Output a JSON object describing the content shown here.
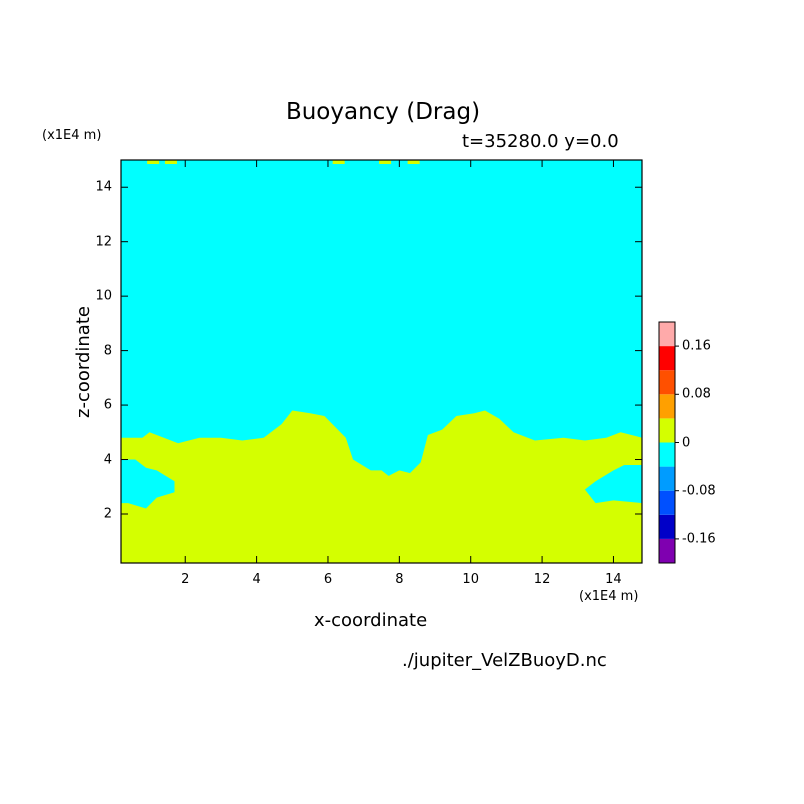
{
  "chart_data": {
    "type": "heatmap",
    "title": "Buoyancy (Drag)",
    "subtitle": "t=35280.0 y=0.0",
    "xlabel": "x-coordinate",
    "ylabel": "z-coordinate",
    "x_unit": "(x1E4 m)",
    "y_unit": "(x1E4 m)",
    "xlim": [
      0.2,
      14.8
    ],
    "ylim": [
      0.2,
      15.0
    ],
    "xticks": [
      2,
      4,
      6,
      8,
      10,
      12,
      14
    ],
    "yticks": [
      2,
      4,
      6,
      8,
      10,
      12,
      14
    ],
    "colorbar": {
      "levels": [
        -0.2,
        -0.16,
        -0.12,
        -0.08,
        -0.04,
        0,
        0.04,
        0.08,
        0.12,
        0.16,
        0.2
      ],
      "colors": [
        "#7f00b0",
        "#0000c8",
        "#0050ff",
        "#009cff",
        "#00ffff",
        "#d4ff00",
        "#ffa000",
        "#ff5000",
        "#ff0000",
        "#ffaaaa"
      ],
      "tick_labels": [
        "-0.16",
        "-0.08",
        "0",
        "0.08",
        "0.16"
      ],
      "tick_values": [
        -0.16,
        -0.08,
        0,
        0.08,
        0.16
      ]
    },
    "background_color": "#00ffff",
    "positive_color": "#d4ff00",
    "positive_region_boundary": [
      [
        0.2,
        4.8
      ],
      [
        0.8,
        4.8
      ],
      [
        1.0,
        5.0
      ],
      [
        1.4,
        4.8
      ],
      [
        1.8,
        4.6
      ],
      [
        2.4,
        4.8
      ],
      [
        3.0,
        4.8
      ],
      [
        3.6,
        4.7
      ],
      [
        4.2,
        4.8
      ],
      [
        4.7,
        5.3
      ],
      [
        5.0,
        5.8
      ],
      [
        5.5,
        5.7
      ],
      [
        5.9,
        5.6
      ],
      [
        6.2,
        5.2
      ],
      [
        6.5,
        4.8
      ],
      [
        6.7,
        4.0
      ],
      [
        7.2,
        3.6
      ],
      [
        7.5,
        3.6
      ],
      [
        7.7,
        3.4
      ],
      [
        8.0,
        3.6
      ],
      [
        8.3,
        3.5
      ],
      [
        8.6,
        3.9
      ],
      [
        8.8,
        4.9
      ],
      [
        9.2,
        5.1
      ],
      [
        9.6,
        5.6
      ],
      [
        10.1,
        5.7
      ],
      [
        10.4,
        5.8
      ],
      [
        10.8,
        5.5
      ],
      [
        11.2,
        5.0
      ],
      [
        11.8,
        4.7
      ],
      [
        12.6,
        4.8
      ],
      [
        13.2,
        4.7
      ],
      [
        13.8,
        4.8
      ],
      [
        14.2,
        5.0
      ],
      [
        14.8,
        4.8
      ],
      [
        14.8,
        0.2
      ],
      [
        0.2,
        0.2
      ]
    ],
    "negative_pockets": [
      [
        [
          0.2,
          4.0
        ],
        [
          0.6,
          4.0
        ],
        [
          0.9,
          3.7
        ],
        [
          1.2,
          3.6
        ],
        [
          1.7,
          3.2
        ],
        [
          1.7,
          2.8
        ],
        [
          1.2,
          2.6
        ],
        [
          0.9,
          2.2
        ],
        [
          0.4,
          2.4
        ],
        [
          0.2,
          2.4
        ]
      ],
      [
        [
          14.8,
          3.8
        ],
        [
          14.3,
          3.8
        ],
        [
          14.0,
          3.6
        ],
        [
          13.5,
          3.2
        ],
        [
          13.2,
          2.9
        ],
        [
          13.5,
          2.4
        ],
        [
          14.0,
          2.5
        ],
        [
          14.8,
          2.4
        ]
      ]
    ],
    "positive_top_specks": [
      [
        1.1,
        14.9
      ],
      [
        1.6,
        14.9
      ],
      [
        6.3,
        14.9
      ],
      [
        7.6,
        14.9
      ],
      [
        8.4,
        14.9
      ]
    ]
  },
  "footer": {
    "filename": "./jupiter_VelZBuoyD.nc"
  }
}
